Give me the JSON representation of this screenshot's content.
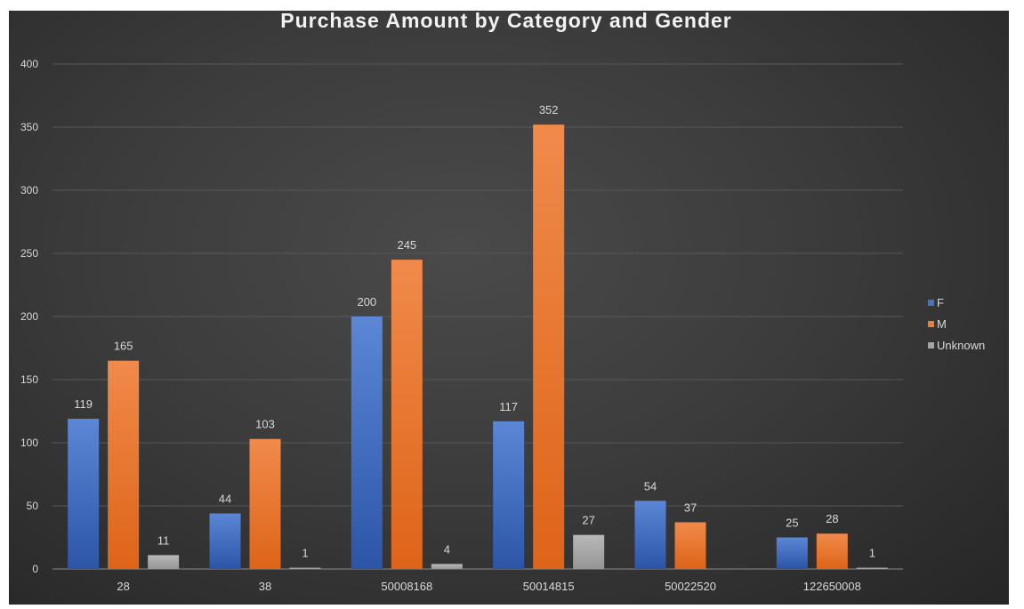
{
  "chart_data": {
    "type": "bar",
    "title": "Purchase Amount by Category and Gender",
    "xlabel": "",
    "ylabel": "",
    "categories": [
      "28",
      "38",
      "50008168",
      "50014815",
      "50022520",
      "122650008"
    ],
    "series": [
      {
        "name": "F",
        "color": "#4472c4",
        "values": [
          119,
          44,
          200,
          117,
          54,
          25
        ]
      },
      {
        "name": "M",
        "color": "#ed7d31",
        "values": [
          165,
          103,
          245,
          352,
          37,
          28
        ]
      },
      {
        "name": "Unknown",
        "color": "#a5a5a5",
        "values": [
          11,
          1,
          4,
          27,
          null,
          1
        ]
      }
    ],
    "ylim": [
      0,
      400
    ],
    "yticks": [
      0,
      50,
      100,
      150,
      200,
      250,
      300,
      350,
      400
    ],
    "grid": true,
    "legend_position": "right",
    "data_labels": true
  }
}
